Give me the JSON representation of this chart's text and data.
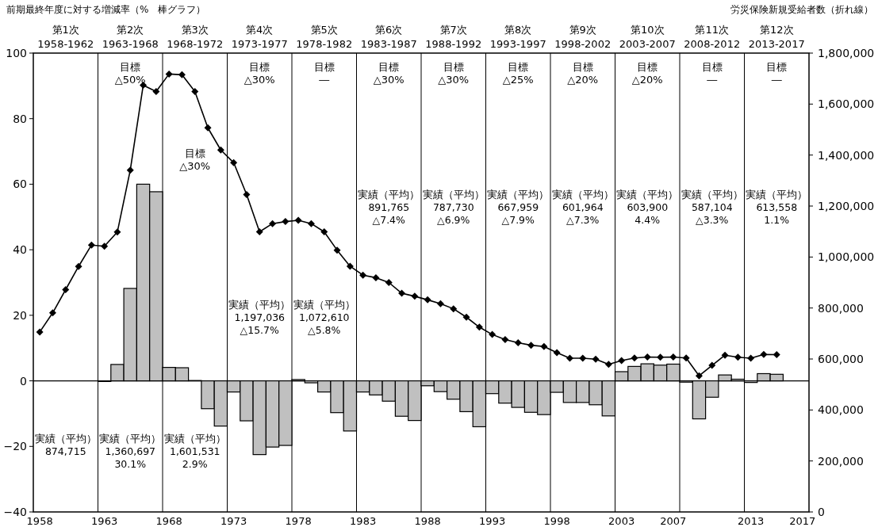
{
  "chart_data": {
    "type": "bar",
    "ylabel": "前期最終年度に対する増減率（%　棒グラフ）",
    "y2label": "労災保険新規受給者数（折れ線）",
    "x": [
      1958,
      1959,
      1960,
      1961,
      1962,
      1963,
      1964,
      1965,
      1966,
      1967,
      1968,
      1969,
      1970,
      1971,
      1972,
      1973,
      1974,
      1975,
      1976,
      1977,
      1978,
      1979,
      1980,
      1981,
      1982,
      1983,
      1984,
      1985,
      1986,
      1987,
      1988,
      1989,
      1990,
      1991,
      1992,
      1993,
      1994,
      1995,
      1996,
      1997,
      1998,
      1999,
      2000,
      2001,
      2002,
      2003,
      2004,
      2005,
      2006,
      2007,
      2008,
      2009,
      2010,
      2011,
      2012,
      2013,
      2014,
      2015
    ],
    "series": [
      {
        "color": "#c0c0c0",
        "values": [
          null,
          null,
          null,
          null,
          null,
          -0.2,
          5.0,
          28.2,
          60.0,
          57.7,
          4.1,
          4.0,
          0.1,
          -8.5,
          -13.8,
          -3.4,
          -12.2,
          -22.5,
          -20.2,
          -19.7,
          0.4,
          -0.6,
          -3.4,
          -9.7,
          -15.3,
          -3.4,
          -4.3,
          -6.2,
          -10.8,
          -12.1,
          -1.5,
          -3.3,
          -5.6,
          -9.4,
          -14.0,
          -3.9,
          -6.8,
          -8.1,
          -9.6,
          -10.3,
          -3.5,
          -6.6,
          -6.6,
          -7.3,
          -10.7,
          2.8,
          4.4,
          5.2,
          4.8,
          5.1,
          -0.4,
          -11.6,
          -5.0,
          1.8,
          0.5,
          -0.5,
          2.2,
          2.0
        ]
      },
      {
        "type": "line",
        "axis": "y2",
        "color": "#000000",
        "marker": "diamond",
        "values": [
          706000,
          781000,
          872000,
          963000,
          1047000,
          1042000,
          1098000,
          1341000,
          1674000,
          1649000,
          1718000,
          1715000,
          1649000,
          1507000,
          1420000,
          1370000,
          1245000,
          1099000,
          1131000,
          1139000,
          1144000,
          1131000,
          1099000,
          1027000,
          964000,
          929000,
          919000,
          900000,
          858000,
          846000,
          832000,
          817000,
          797000,
          764000,
          725000,
          696000,
          676000,
          664000,
          654000,
          649000,
          625000,
          603000,
          603000,
          599000,
          579000,
          594000,
          604000,
          608000,
          607000,
          608000,
          604000,
          534000,
          575000,
          615000,
          607000,
          603000,
          618000,
          617000
        ]
      }
    ],
    "xlim": [
      1957.5,
      2017.5
    ],
    "xticks": [
      1958,
      1963,
      1968,
      1973,
      1978,
      1983,
      1988,
      1993,
      1998,
      2003,
      2007,
      2013,
      2017
    ],
    "ylim": [
      -40,
      100
    ],
    "yticks": [
      -40,
      -20,
      0,
      20,
      40,
      60,
      80,
      100
    ],
    "y2lim": [
      0,
      1800000
    ],
    "y2ticks": [
      {
        "value": 0,
        "label": "0"
      },
      {
        "value": 200000,
        "label": "200,000"
      },
      {
        "value": 400000,
        "label": "400,000"
      },
      {
        "value": 600000,
        "label": "600,000"
      },
      {
        "value": 800000,
        "label": "800,000"
      },
      {
        "value": 1000000,
        "label": "1,000,000"
      },
      {
        "value": 1200000,
        "label": "1,200,000"
      },
      {
        "value": 1400000,
        "label": "1,400,000"
      },
      {
        "value": 1600000,
        "label": "1,600,000"
      },
      {
        "value": 1800000,
        "label": "1,800,000"
      }
    ],
    "ref_lines": [
      {
        "axis": "y",
        "value": 0,
        "color": "#000000"
      },
      {
        "axis": "x",
        "value": 1962.5,
        "color": "#000000"
      },
      {
        "axis": "x",
        "value": 1967.5,
        "color": "#000000"
      },
      {
        "axis": "x",
        "value": 1972.5,
        "color": "#000000"
      },
      {
        "axis": "x",
        "value": 1977.5,
        "color": "#000000"
      },
      {
        "axis": "x",
        "value": 1982.5,
        "color": "#000000"
      },
      {
        "axis": "x",
        "value": 1987.5,
        "color": "#000000"
      },
      {
        "axis": "x",
        "value": 1992.5,
        "color": "#000000"
      },
      {
        "axis": "x",
        "value": 1997.5,
        "color": "#000000"
      },
      {
        "axis": "x",
        "value": 2002.5,
        "color": "#000000"
      },
      {
        "axis": "x",
        "value": 2007.5,
        "color": "#000000"
      },
      {
        "axis": "x",
        "value": 2012.5,
        "color": "#000000"
      }
    ],
    "annotations": [
      "第1次\n1958-1962",
      "第2次\n1963-1968",
      "第3次\n1968-1972",
      "第4次\n1973-1977",
      "第5次\n1978-1982",
      "第6次\n1983-1987",
      "第7次\n1988-1992",
      "第8次\n1993-1997",
      "第9次\n1998-2002",
      "第10次\n2003-2007",
      "第11次\n2008-2012",
      "第12次\n2013-2017",
      "目標\n△50%",
      "目標\n△30%",
      "目標\n△30%",
      "目標\n―",
      "目標\n△30%",
      "目標\n△30%",
      "目標\n△25%",
      "目標\n△20%",
      "目標\n△20%",
      "目標\n―",
      "目標\n―",
      "実績（平均）\n874,715",
      "実績（平均）\n1,360,697\n30.1%",
      "実績（平均）\n1,601,531\n2.9%",
      "実績（平均）\n1,197,036\n△15.7%",
      "実績（平均）\n1,072,610\n△5.8%",
      "実績（平均）\n891,765\n△7.4%",
      "実績（平均）\n787,730\n△6.9%",
      "実績（平均）\n667,959\n△7.9%",
      "実績（平均）\n601,964\n△7.3%",
      "実績（平均）\n603,900\n4.4%",
      "実績（平均）\n587,104\n△3.3%",
      "実績（平均）\n613,558\n1.1%"
    ]
  }
}
